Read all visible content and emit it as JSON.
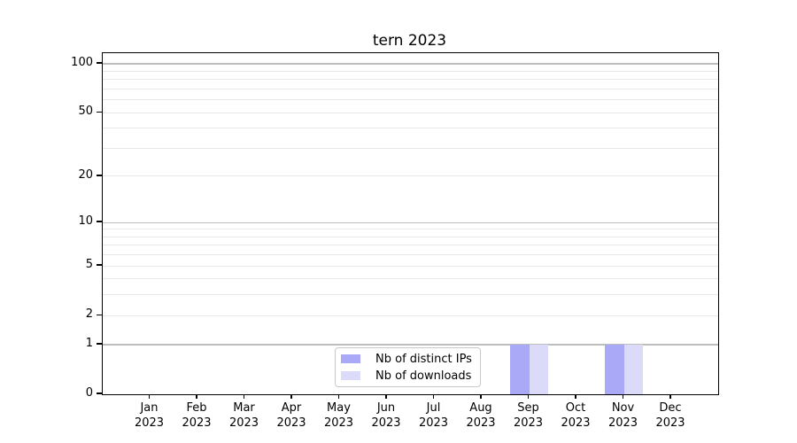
{
  "chart_data": {
    "type": "bar",
    "title": "tern 2023",
    "xlabel": "",
    "ylabel": "",
    "categories": [
      "Jan 2023",
      "Feb 2023",
      "Mar 2023",
      "Apr 2023",
      "May 2023",
      "Jun 2023",
      "Jul 2023",
      "Aug 2023",
      "Sep 2023",
      "Oct 2023",
      "Nov 2023",
      "Dec 2023"
    ],
    "series": [
      {
        "name": "Nb of distinct IPs",
        "color": "#a9a9f7",
        "values": [
          0,
          0,
          0,
          0,
          0,
          0,
          0,
          0,
          1,
          0,
          1,
          0
        ]
      },
      {
        "name": "Nb of downloads",
        "color": "#dbdbf9",
        "values": [
          0,
          0,
          0,
          0,
          0,
          0,
          0,
          0,
          1,
          0,
          1,
          0
        ]
      }
    ],
    "y_axis": {
      "scale": "log1p",
      "tick_values": [
        0,
        1,
        2,
        5,
        10,
        20,
        50,
        100
      ],
      "tick_labels": [
        "0",
        "1",
        "2",
        "5",
        "10",
        "20",
        "50",
        "100"
      ],
      "major_gridline_values": [
        1,
        10,
        100
      ],
      "minor_gridline_values": [
        2,
        3,
        4,
        5,
        6,
        7,
        8,
        9,
        20,
        30,
        40,
        50,
        60,
        70,
        80,
        90
      ],
      "ylim": [
        0,
        116
      ]
    },
    "grid": true,
    "legend_position": "lower center"
  }
}
